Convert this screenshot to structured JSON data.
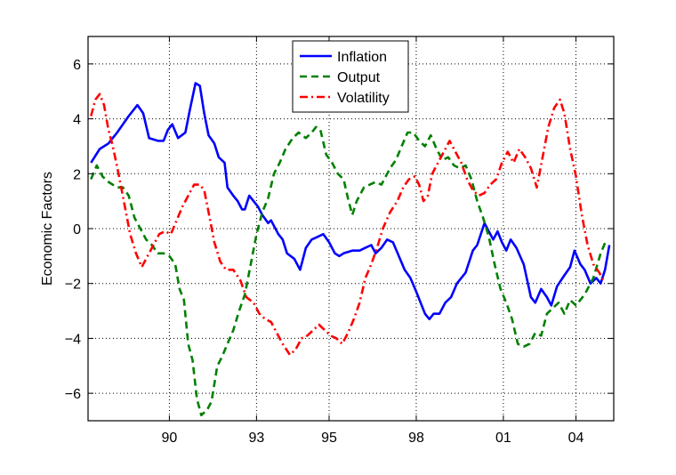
{
  "chart_data": {
    "type": "line",
    "title": "",
    "xlabel": "",
    "ylabel": "Economic Factors",
    "xlim": [
      1987.2,
      2005.3
    ],
    "ylim": [
      -7,
      7
    ],
    "x_ticks": [
      {
        "value": 1990,
        "label": "90"
      },
      {
        "value": 1993,
        "label": "93"
      },
      {
        "value": 1995.5,
        "label": "95"
      },
      {
        "value": 1998.5,
        "label": "98"
      },
      {
        "value": 2001.5,
        "label": "01"
      },
      {
        "value": 2004,
        "label": "04"
      }
    ],
    "y_ticks": [
      -6,
      -4,
      -2,
      0,
      2,
      4,
      6
    ],
    "grid": true,
    "legend_position": "top-center",
    "series": [
      {
        "name": "Inflation",
        "color": "#0000ff",
        "style": "solid",
        "points": [
          [
            1987.3,
            2.4
          ],
          [
            1987.6,
            2.9
          ],
          [
            1987.9,
            3.1
          ],
          [
            1988.2,
            3.5
          ],
          [
            1988.6,
            4.1
          ],
          [
            1988.9,
            4.5
          ],
          [
            1989.1,
            4.2
          ],
          [
            1989.3,
            3.3
          ],
          [
            1989.6,
            3.2
          ],
          [
            1989.8,
            3.2
          ],
          [
            1989.95,
            3.6
          ],
          [
            1990.1,
            3.8
          ],
          [
            1990.3,
            3.3
          ],
          [
            1990.55,
            3.5
          ],
          [
            1990.7,
            4.3
          ],
          [
            1990.9,
            5.3
          ],
          [
            1991.05,
            5.2
          ],
          [
            1991.2,
            4.2
          ],
          [
            1991.35,
            3.4
          ],
          [
            1991.55,
            3.1
          ],
          [
            1991.7,
            2.6
          ],
          [
            1991.9,
            2.4
          ],
          [
            1992.0,
            1.5
          ],
          [
            1992.2,
            1.2
          ],
          [
            1992.35,
            1.0
          ],
          [
            1992.5,
            0.7
          ],
          [
            1992.6,
            0.7
          ],
          [
            1992.75,
            1.2
          ],
          [
            1992.9,
            1.0
          ],
          [
            1993.05,
            0.8
          ],
          [
            1993.2,
            0.5
          ],
          [
            1993.4,
            0.2
          ],
          [
            1993.5,
            0.3
          ],
          [
            1993.75,
            -0.2
          ],
          [
            1993.9,
            -0.4
          ],
          [
            1994.05,
            -0.9
          ],
          [
            1994.3,
            -1.1
          ],
          [
            1994.5,
            -1.5
          ],
          [
            1994.7,
            -0.7
          ],
          [
            1994.9,
            -0.4
          ],
          [
            1995.1,
            -0.3
          ],
          [
            1995.3,
            -0.2
          ],
          [
            1995.5,
            -0.5
          ],
          [
            1995.7,
            -0.9
          ],
          [
            1995.85,
            -1.0
          ],
          [
            1996.0,
            -0.9
          ],
          [
            1996.3,
            -0.8
          ],
          [
            1996.55,
            -0.8
          ],
          [
            1996.75,
            -0.7
          ],
          [
            1996.95,
            -0.6
          ],
          [
            1997.1,
            -0.9
          ],
          [
            1997.3,
            -0.7
          ],
          [
            1997.5,
            -0.4
          ],
          [
            1997.7,
            -0.5
          ],
          [
            1997.9,
            -1.0
          ],
          [
            1998.1,
            -1.5
          ],
          [
            1998.3,
            -1.8
          ],
          [
            1998.5,
            -2.3
          ],
          [
            1998.8,
            -3.1
          ],
          [
            1998.95,
            -3.3
          ],
          [
            1999.1,
            -3.1
          ],
          [
            1999.3,
            -3.1
          ],
          [
            1999.5,
            -2.7
          ],
          [
            1999.7,
            -2.5
          ],
          [
            1999.9,
            -2.0
          ],
          [
            2000.2,
            -1.6
          ],
          [
            2000.45,
            -0.8
          ],
          [
            2000.6,
            -0.6
          ],
          [
            2000.85,
            0.2
          ],
          [
            2001.0,
            -0.1
          ],
          [
            2001.15,
            -0.4
          ],
          [
            2001.3,
            -0.1
          ],
          [
            2001.45,
            -0.5
          ],
          [
            2001.6,
            -0.8
          ],
          [
            2001.75,
            -0.4
          ],
          [
            2001.95,
            -0.7
          ],
          [
            2002.2,
            -1.3
          ],
          [
            2002.45,
            -2.5
          ],
          [
            2002.6,
            -2.7
          ],
          [
            2002.8,
            -2.2
          ],
          [
            2003.0,
            -2.5
          ],
          [
            2003.15,
            -2.8
          ],
          [
            2003.35,
            -2.1
          ],
          [
            2003.6,
            -1.7
          ],
          [
            2003.8,
            -1.4
          ],
          [
            2003.95,
            -0.8
          ],
          [
            2004.15,
            -1.3
          ],
          [
            2004.3,
            -1.5
          ],
          [
            2004.5,
            -2.0
          ],
          [
            2004.7,
            -1.8
          ],
          [
            2004.85,
            -2.0
          ],
          [
            2005.0,
            -1.5
          ],
          [
            2005.15,
            -0.6
          ]
        ]
      },
      {
        "name": "Output",
        "color": "#008000",
        "style": "dashed",
        "points": [
          [
            1987.3,
            1.8
          ],
          [
            1987.5,
            2.3
          ],
          [
            1987.7,
            1.9
          ],
          [
            1987.9,
            1.7
          ],
          [
            1988.2,
            1.5
          ],
          [
            1988.4,
            1.5
          ],
          [
            1988.6,
            1.2
          ],
          [
            1988.8,
            0.4
          ],
          [
            1989.0,
            0.0
          ],
          [
            1989.2,
            -0.4
          ],
          [
            1989.4,
            -0.6
          ],
          [
            1989.6,
            -0.9
          ],
          [
            1989.8,
            -0.9
          ],
          [
            1990.0,
            -1.0
          ],
          [
            1990.2,
            -1.3
          ],
          [
            1990.35,
            -2.2
          ],
          [
            1990.5,
            -2.6
          ],
          [
            1990.65,
            -4.2
          ],
          [
            1990.8,
            -4.8
          ],
          [
            1990.95,
            -6.2
          ],
          [
            1991.1,
            -6.8
          ],
          [
            1991.3,
            -6.6
          ],
          [
            1991.45,
            -6.3
          ],
          [
            1991.65,
            -5.0
          ],
          [
            1991.8,
            -4.7
          ],
          [
            1992.0,
            -4.2
          ],
          [
            1992.2,
            -3.7
          ],
          [
            1992.4,
            -3.0
          ],
          [
            1992.6,
            -2.4
          ],
          [
            1992.8,
            -1.3
          ],
          [
            1993.0,
            -0.2
          ],
          [
            1993.2,
            0.6
          ],
          [
            1993.4,
            1.1
          ],
          [
            1993.6,
            2.0
          ],
          [
            1993.8,
            2.4
          ],
          [
            1994.0,
            2.9
          ],
          [
            1994.25,
            3.3
          ],
          [
            1994.45,
            3.5
          ],
          [
            1994.7,
            3.3
          ],
          [
            1994.9,
            3.5
          ],
          [
            1995.05,
            3.7
          ],
          [
            1995.2,
            3.6
          ],
          [
            1995.4,
            2.7
          ],
          [
            1995.6,
            2.4
          ],
          [
            1995.8,
            2.0
          ],
          [
            1996.0,
            1.8
          ],
          [
            1996.15,
            1.1
          ],
          [
            1996.3,
            0.5
          ],
          [
            1996.45,
            1.0
          ],
          [
            1996.7,
            1.5
          ],
          [
            1996.9,
            1.6
          ],
          [
            1997.1,
            1.7
          ],
          [
            1997.3,
            1.6
          ],
          [
            1997.6,
            2.2
          ],
          [
            1997.8,
            2.5
          ],
          [
            1998.0,
            3.0
          ],
          [
            1998.2,
            3.5
          ],
          [
            1998.4,
            3.5
          ],
          [
            1998.6,
            3.2
          ],
          [
            1998.8,
            3.0
          ],
          [
            1999.0,
            3.4
          ],
          [
            1999.2,
            2.9
          ],
          [
            1999.4,
            2.5
          ],
          [
            1999.6,
            2.6
          ],
          [
            1999.8,
            2.3
          ],
          [
            2000.0,
            2.2
          ],
          [
            2000.2,
            2.3
          ],
          [
            2000.4,
            1.8
          ],
          [
            2000.6,
            1.0
          ],
          [
            2000.8,
            0.4
          ],
          [
            2001.0,
            -0.3
          ],
          [
            2001.2,
            -1.3
          ],
          [
            2001.4,
            -2.2
          ],
          [
            2001.6,
            -2.7
          ],
          [
            2001.8,
            -3.3
          ],
          [
            2002.0,
            -4.2
          ],
          [
            2002.2,
            -4.3
          ],
          [
            2002.4,
            -4.2
          ],
          [
            2002.6,
            -3.8
          ],
          [
            2002.8,
            -3.9
          ],
          [
            2003.0,
            -3.1
          ],
          [
            2003.2,
            -2.9
          ],
          [
            2003.4,
            -2.7
          ],
          [
            2003.6,
            -3.1
          ],
          [
            2003.8,
            -2.6
          ],
          [
            2004.0,
            -2.8
          ],
          [
            2004.3,
            -2.4
          ],
          [
            2004.6,
            -1.8
          ],
          [
            2004.85,
            -0.9
          ],
          [
            2005.05,
            -0.4
          ]
        ]
      },
      {
        "name": "Volatility",
        "color": "#ff0000",
        "style": "dashdot",
        "points": [
          [
            1987.3,
            4.1
          ],
          [
            1987.45,
            4.7
          ],
          [
            1987.6,
            4.9
          ],
          [
            1987.75,
            4.5
          ],
          [
            1987.9,
            3.6
          ],
          [
            1988.05,
            3.0
          ],
          [
            1988.25,
            2.0
          ],
          [
            1988.45,
            0.9
          ],
          [
            1988.65,
            -0.2
          ],
          [
            1988.85,
            -0.9
          ],
          [
            1989.05,
            -1.4
          ],
          [
            1989.25,
            -1.0
          ],
          [
            1989.45,
            -0.6
          ],
          [
            1989.65,
            -0.2
          ],
          [
            1989.85,
            -0.1
          ],
          [
            1990.05,
            -0.2
          ],
          [
            1990.25,
            0.3
          ],
          [
            1990.45,
            0.8
          ],
          [
            1990.65,
            1.2
          ],
          [
            1990.85,
            1.6
          ],
          [
            1991.05,
            1.6
          ],
          [
            1991.2,
            1.4
          ],
          [
            1991.35,
            0.6
          ],
          [
            1991.55,
            -0.5
          ],
          [
            1991.75,
            -1.2
          ],
          [
            1991.95,
            -1.5
          ],
          [
            1992.2,
            -1.5
          ],
          [
            1992.45,
            -1.9
          ],
          [
            1992.65,
            -2.5
          ],
          [
            1992.9,
            -2.7
          ],
          [
            1993.1,
            -3.1
          ],
          [
            1993.3,
            -3.3
          ],
          [
            1993.5,
            -3.4
          ],
          [
            1993.7,
            -3.8
          ],
          [
            1993.9,
            -4.2
          ],
          [
            1994.15,
            -4.6
          ],
          [
            1994.35,
            -4.4
          ],
          [
            1994.55,
            -4.0
          ],
          [
            1994.75,
            -3.9
          ],
          [
            1994.95,
            -3.7
          ],
          [
            1995.15,
            -3.5
          ],
          [
            1995.35,
            -3.7
          ],
          [
            1995.55,
            -3.9
          ],
          [
            1995.75,
            -4.0
          ],
          [
            1995.95,
            -4.2
          ],
          [
            1996.15,
            -3.8
          ],
          [
            1996.35,
            -3.3
          ],
          [
            1996.55,
            -2.7
          ],
          [
            1996.75,
            -1.8
          ],
          [
            1996.95,
            -1.3
          ],
          [
            1997.15,
            -0.7
          ],
          [
            1997.35,
            0.0
          ],
          [
            1997.6,
            0.6
          ],
          [
            1997.85,
            1.0
          ],
          [
            1998.05,
            1.5
          ],
          [
            1998.25,
            1.8
          ],
          [
            1998.45,
            1.9
          ],
          [
            1998.6,
            1.6
          ],
          [
            1998.75,
            1.0
          ],
          [
            1998.9,
            1.2
          ],
          [
            1999.05,
            2.0
          ],
          [
            1999.25,
            2.4
          ],
          [
            1999.45,
            2.8
          ],
          [
            1999.65,
            3.2
          ],
          [
            1999.85,
            2.8
          ],
          [
            2000.05,
            2.4
          ],
          [
            2000.25,
            1.8
          ],
          [
            2000.45,
            1.4
          ],
          [
            2000.65,
            1.2
          ],
          [
            2000.85,
            1.3
          ],
          [
            2001.05,
            1.6
          ],
          [
            2001.25,
            1.8
          ],
          [
            2001.45,
            2.4
          ],
          [
            2001.65,
            2.8
          ],
          [
            2001.85,
            2.4
          ],
          [
            2002.05,
            2.9
          ],
          [
            2002.25,
            2.6
          ],
          [
            2002.45,
            2.2
          ],
          [
            2002.65,
            1.5
          ],
          [
            2002.85,
            2.6
          ],
          [
            2003.05,
            3.7
          ],
          [
            2003.25,
            4.4
          ],
          [
            2003.45,
            4.7
          ],
          [
            2003.6,
            4.2
          ],
          [
            2003.8,
            2.9
          ],
          [
            2004.0,
            1.9
          ],
          [
            2004.2,
            0.5
          ],
          [
            2004.4,
            -0.6
          ],
          [
            2004.6,
            -1.3
          ],
          [
            2004.8,
            -1.6
          ],
          [
            2004.95,
            -1.9
          ]
        ]
      }
    ]
  }
}
